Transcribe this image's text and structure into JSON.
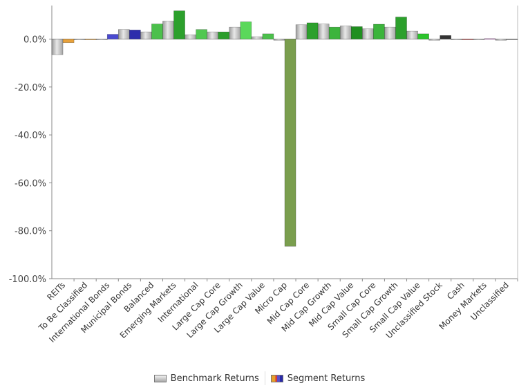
{
  "chart_data": {
    "type": "bar",
    "categories": [
      "REITs",
      "To Be Classified",
      "International Bonds",
      "Municipal Bonds",
      "Balanced",
      "Emerging Markets",
      "International",
      "Large Cap Core",
      "Large Cap Growth",
      "Large Cap Value",
      "Micro Cap",
      "Mid Cap Core",
      "Mid Cap Growth",
      "Mid Cap Value",
      "Small Cap Core",
      "Small Cap Growth",
      "Small Cap Value",
      "Unclassified Stock",
      "Cash",
      "Money Markets",
      "Unclassified"
    ],
    "series": [
      {
        "name": "Benchmark Returns",
        "values": [
          -6.5,
          -0.3,
          0.0,
          4.0,
          3.0,
          7.5,
          1.8,
          3.0,
          5.0,
          1.0,
          -0.5,
          6.0,
          6.3,
          5.5,
          4.3,
          5.0,
          3.3,
          -0.5,
          -0.3,
          0.0,
          -0.5
        ]
      },
      {
        "name": "Segment Returns",
        "values": [
          -1.5,
          -0.2,
          2.0,
          3.8,
          6.3,
          11.8,
          4.0,
          3.0,
          7.2,
          2.2,
          -86.5,
          6.8,
          5.0,
          5.2,
          6.2,
          9.2,
          2.2,
          1.5,
          -0.2,
          0.2,
          -0.3
        ]
      }
    ],
    "segment_colors": [
      "#e8a13a",
      "#e8a13a",
      "#4a4ad0",
      "#2d2dac",
      "#4cc04c",
      "#2ca02c",
      "#50c850",
      "#2c9e2c",
      "#5ad85a",
      "#4cc04c",
      "#7a9e4e",
      "#2ca02c",
      "#3cb43c",
      "#1f8f1f",
      "#3cb43c",
      "#2ca02c",
      "#2cc42c",
      "#333333",
      "#d05050",
      "#c070c0",
      "#999999"
    ],
    "benchmark_color": "#c4c4c4",
    "yticks": [
      0,
      -20,
      -40,
      -60,
      -80,
      -100
    ],
    "ytick_labels": [
      "0.0%",
      "-20.0%",
      "-40.0%",
      "-60.0%",
      "-80.0%",
      "-100.0%"
    ],
    "ylim": [
      -100,
      14
    ],
    "grid": false,
    "legend_position": "bottom"
  }
}
